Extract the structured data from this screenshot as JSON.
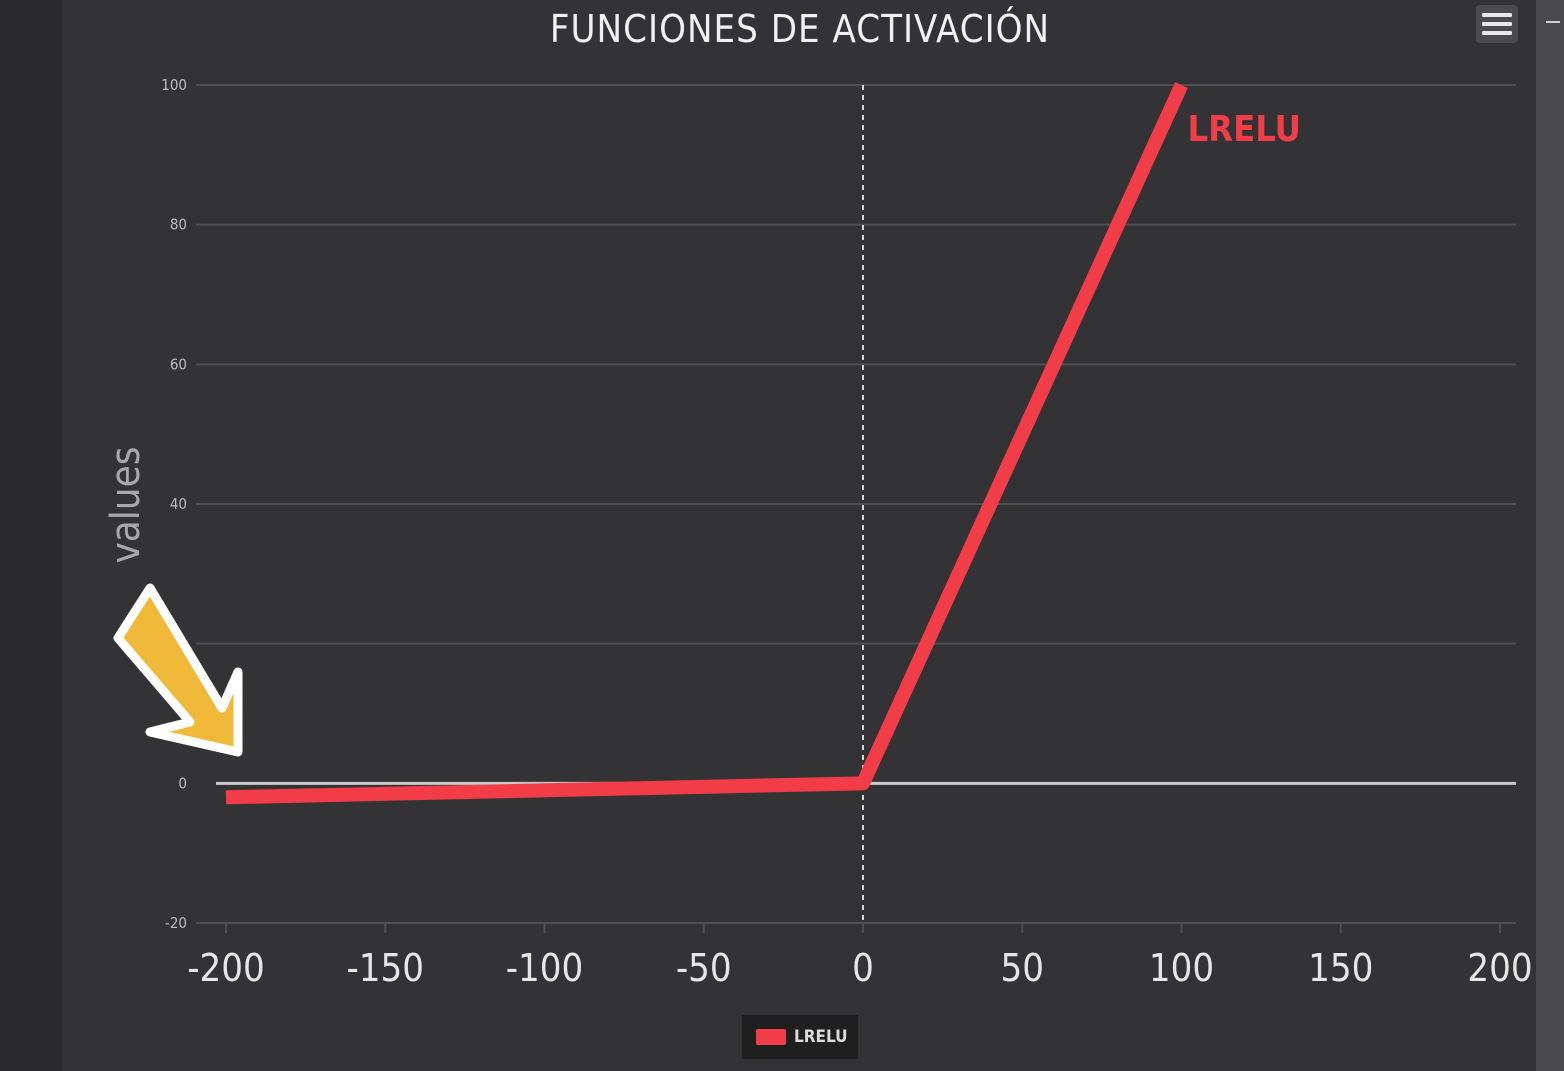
{
  "chart_data": {
    "type": "line",
    "title": "FUNCIONES DE ACTIVACIÓN",
    "xlabel": "",
    "ylabel": "values",
    "xlim": [
      -200,
      200
    ],
    "ylim": [
      -20,
      100
    ],
    "x_ticks": [
      -200,
      -150,
      -100,
      -50,
      0,
      50,
      100,
      150,
      200
    ],
    "x_tick_labels": [
      "-200",
      "-150",
      "-100",
      "-50",
      "0",
      "50",
      "100",
      "150",
      "200"
    ],
    "y_ticks": [
      -20,
      0,
      20,
      40,
      60,
      80,
      100
    ],
    "y_tick_labels": [
      "-20",
      "0",
      "",
      "40",
      "60",
      "80",
      "100"
    ],
    "grid": true,
    "reference_lines": {
      "x0_dashed": true,
      "y0_solid": true
    },
    "legend_position": "bottom-center",
    "series": [
      {
        "name": "LRELU",
        "color": "#f23d48",
        "x": [
          -200,
          0,
          100
        ],
        "y": [
          -2,
          0,
          100
        ]
      }
    ]
  },
  "annotation": {
    "type": "arrow-icon",
    "color": "#f0b93a"
  },
  "toolbar": {
    "menu_icon": "hamburger-menu-icon"
  },
  "legend": {
    "label": "LRELU",
    "color": "#f23d48"
  }
}
